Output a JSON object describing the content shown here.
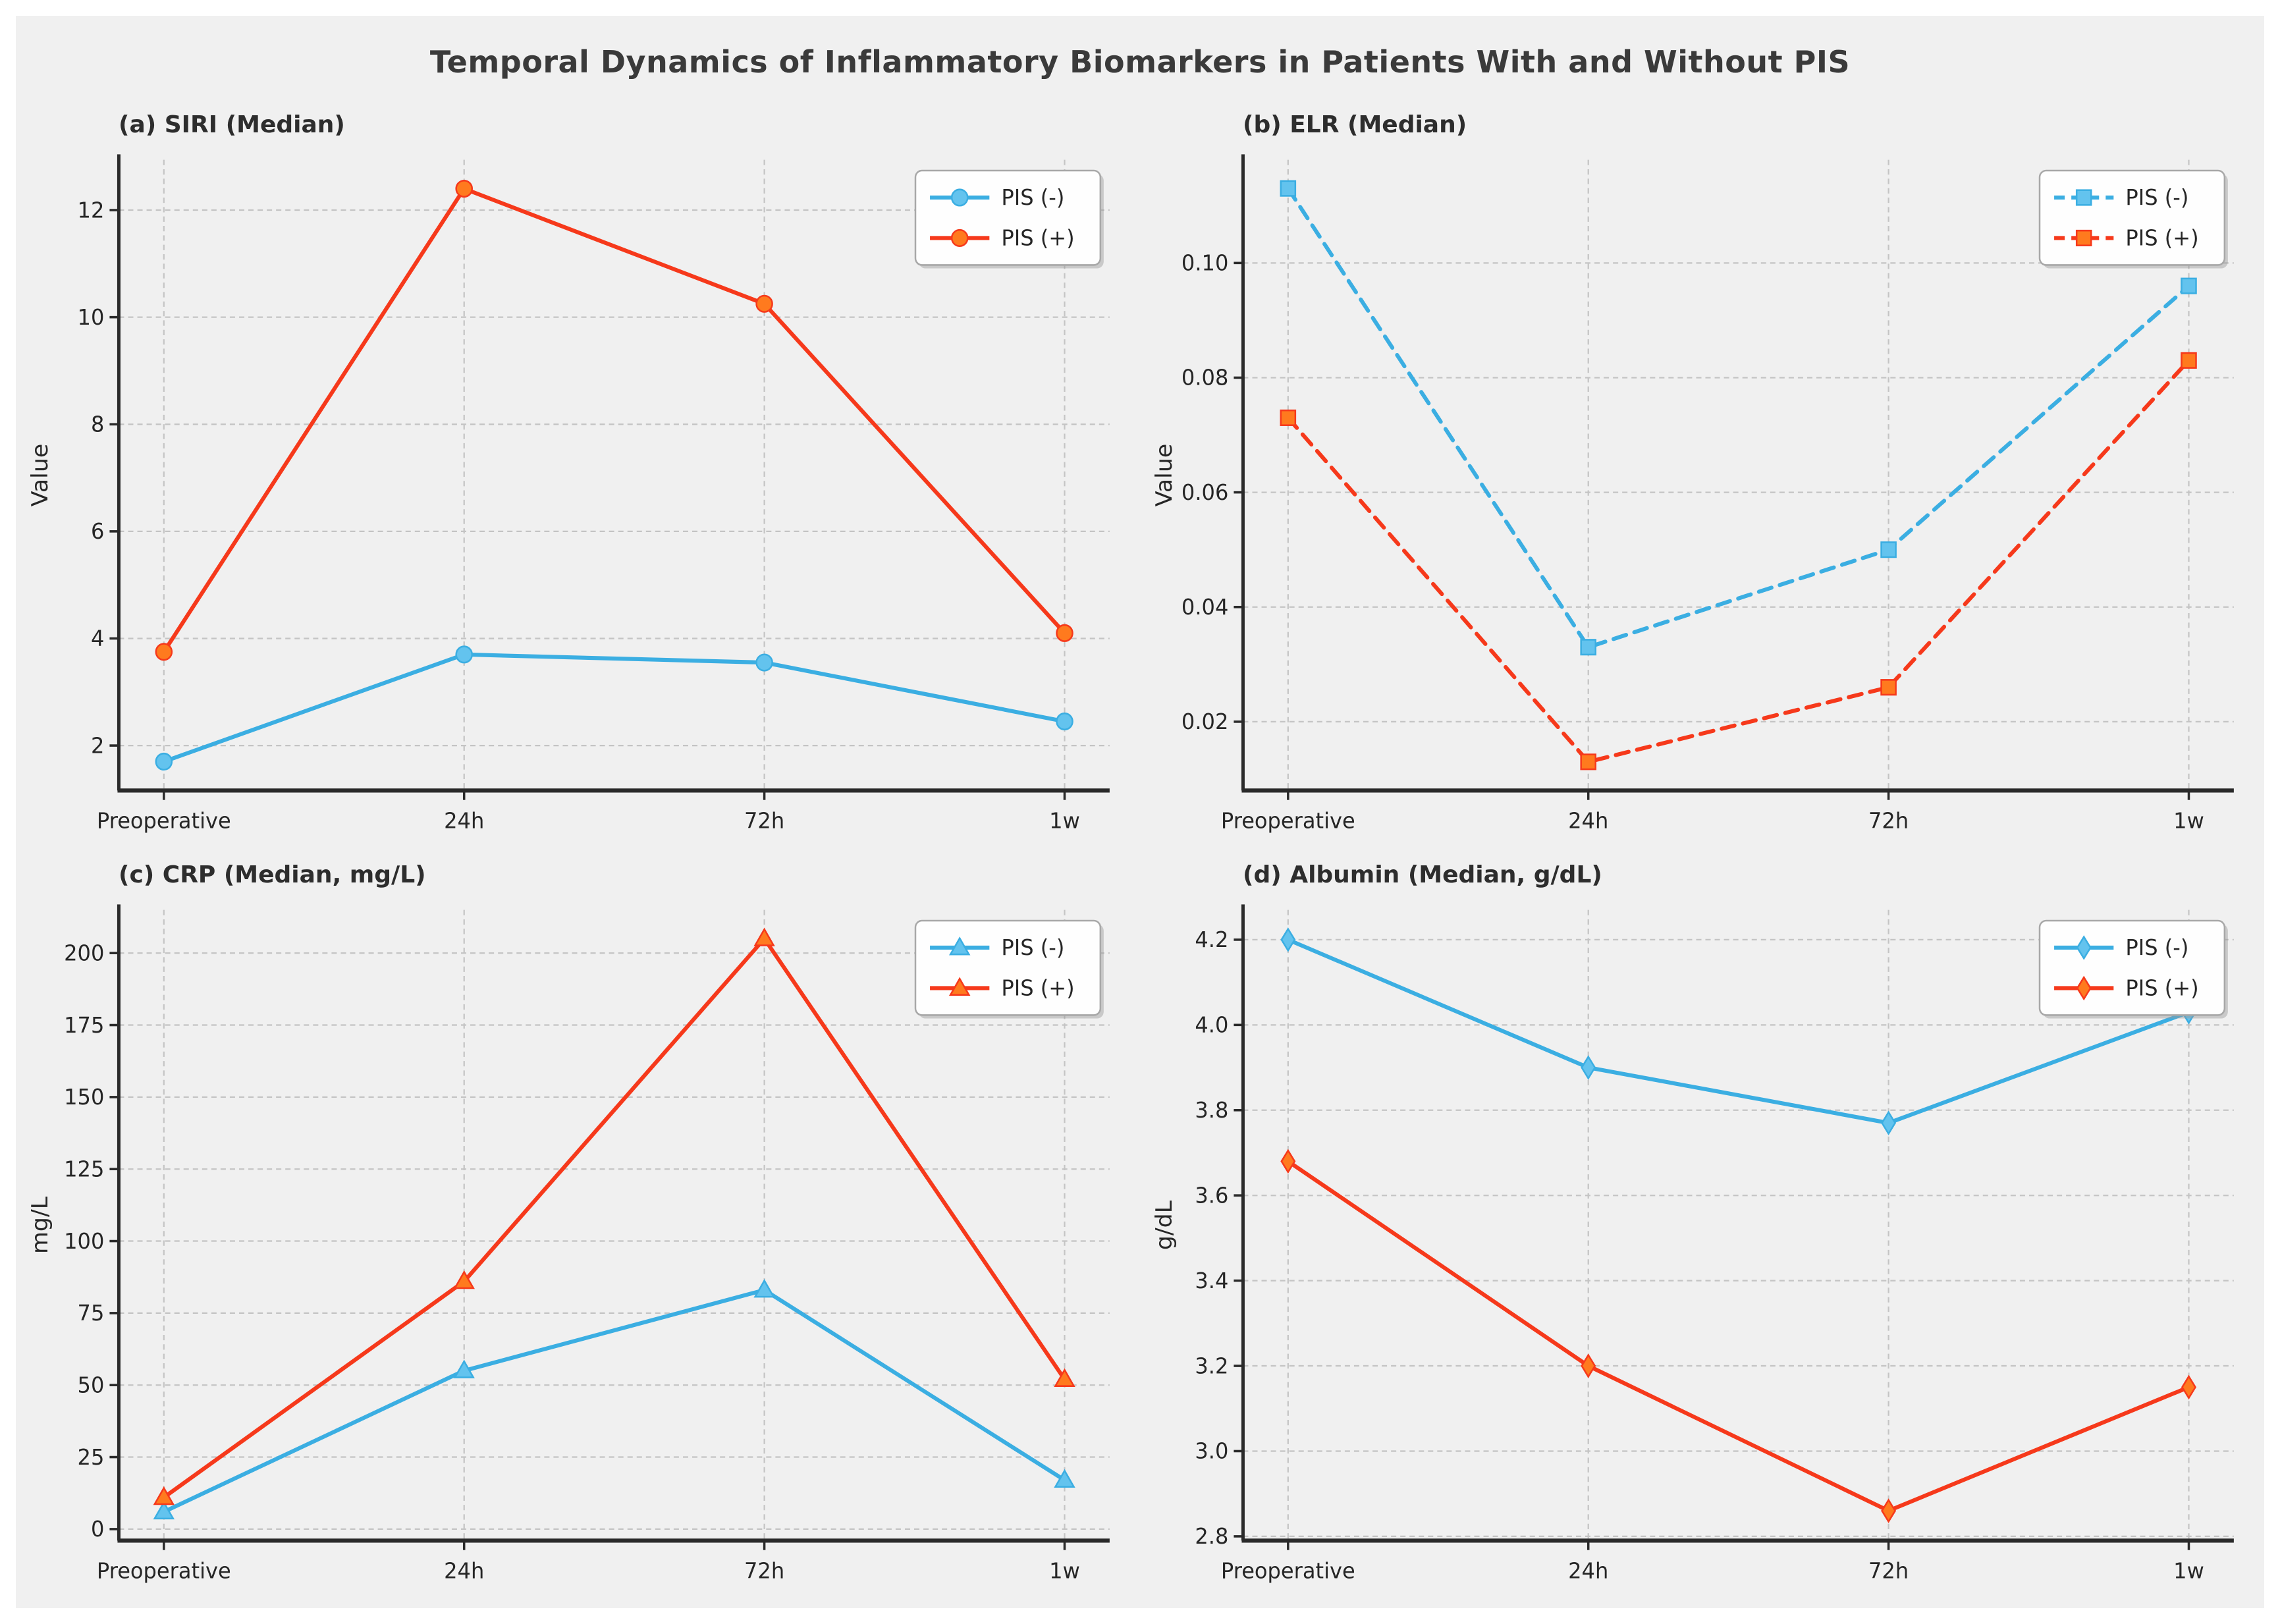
{
  "title": "Temporal Dynamics of Inflammatory Biomarkers in Patients With and Without PIS",
  "categories": [
    "Preoperative",
    "24h",
    "72h",
    "1w"
  ],
  "legend": {
    "position": "top-right",
    "entries": [
      "PIS (-)",
      "PIS (+)"
    ]
  },
  "colors": {
    "pis_neg_line": "#3BAEE2",
    "pis_neg_marker_fill": "#63C3EE",
    "pis_pos_line": "#F6391B",
    "pis_pos_marker_fill": "#FF7A1E",
    "grid_line": "#C4C4C4",
    "spine": "#2A2A2A",
    "text": "#262626",
    "figure_background": "#F0F0F0",
    "page_background": "#FFFFFF",
    "legend_background": "#FEFEFE",
    "legend_border": "#A8A8A8"
  },
  "chart_data": [
    {
      "id": "a",
      "type": "line",
      "title": "(a) SIRI (Median)",
      "xlabel": "",
      "ylabel": "Value",
      "ylim": [
        1.16,
        12.94
      ],
      "yticks": [
        2,
        4,
        6,
        8,
        10,
        12
      ],
      "ytick_labels": [
        "2",
        "4",
        "6",
        "8",
        "10",
        "12"
      ],
      "marker": "circle",
      "linestyle": "solid",
      "grid": true,
      "legend_position": "top-right",
      "series": [
        {
          "name": "PIS (-)",
          "values": [
            1.7,
            3.7,
            3.55,
            2.45
          ]
        },
        {
          "name": "PIS (+)",
          "values": [
            3.75,
            12.4,
            10.25,
            4.1
          ]
        }
      ]
    },
    {
      "id": "b",
      "type": "line",
      "title": "(b) ELR (Median)",
      "xlabel": "",
      "ylabel": "Value",
      "ylim": [
        0.008,
        0.118
      ],
      "yticks": [
        0.02,
        0.04,
        0.06,
        0.08,
        0.1
      ],
      "ytick_labels": [
        "0.02",
        "0.04",
        "0.06",
        "0.08",
        "0.10"
      ],
      "marker": "square",
      "linestyle": "dashed",
      "grid": true,
      "legend_position": "top-right",
      "series": [
        {
          "name": "PIS (-)",
          "values": [
            0.113,
            0.033,
            0.05,
            0.096
          ]
        },
        {
          "name": "PIS (+)",
          "values": [
            0.073,
            0.013,
            0.026,
            0.083
          ]
        }
      ]
    },
    {
      "id": "c",
      "type": "line",
      "title": "(c) CRP (Median, mg/L)",
      "xlabel": "",
      "ylabel": "mg/L",
      "ylim": [
        -4,
        215
      ],
      "yticks": [
        0,
        25,
        50,
        75,
        100,
        125,
        150,
        175,
        200
      ],
      "ytick_labels": [
        "0",
        "25",
        "50",
        "75",
        "100",
        "125",
        "150",
        "175",
        "200"
      ],
      "marker": "triangle",
      "linestyle": "solid",
      "grid": true,
      "legend_position": "top-right",
      "series": [
        {
          "name": "PIS (-)",
          "values": [
            6,
            55,
            83,
            17
          ]
        },
        {
          "name": "PIS (+)",
          "values": [
            11,
            86,
            205,
            52
          ]
        }
      ]
    },
    {
      "id": "d",
      "type": "line",
      "title": "(d) Albumin (Median, g/dL)",
      "xlabel": "",
      "ylabel": "g/dL",
      "ylim": [
        2.79,
        4.27
      ],
      "yticks": [
        2.8,
        3.0,
        3.2,
        3.4,
        3.6,
        3.8,
        4.0,
        4.2
      ],
      "ytick_labels": [
        "2.8",
        "3.0",
        "3.2",
        "3.4",
        "3.6",
        "3.8",
        "4.0",
        "4.2"
      ],
      "marker": "diamond",
      "linestyle": "solid",
      "grid": true,
      "legend_position": "top-right",
      "series": [
        {
          "name": "PIS (-)",
          "values": [
            4.2,
            3.9,
            3.77,
            4.03
          ]
        },
        {
          "name": "PIS (+)",
          "values": [
            3.68,
            3.2,
            2.86,
            3.15
          ]
        }
      ]
    }
  ]
}
